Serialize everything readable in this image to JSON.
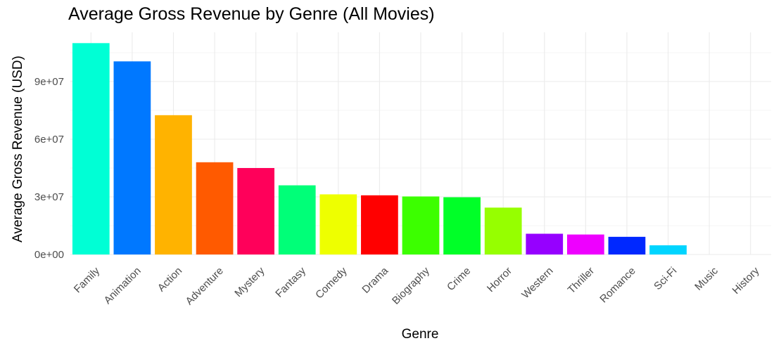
{
  "chart_data": {
    "type": "bar",
    "title": "Average Gross Revenue by Genre (All Movies)",
    "xlabel": "Genre",
    "ylabel": "Average Gross Revenue (USD)",
    "categories": [
      "Family",
      "Animation",
      "Action",
      "Adventure",
      "Mystery",
      "Fantasy",
      "Comedy",
      "Drama",
      "Biography",
      "Crime",
      "Horror",
      "Western",
      "Thriller",
      "Romance",
      "Sci-Fi",
      "Music",
      "History"
    ],
    "values": [
      110000000,
      100500000,
      72500000,
      48000000,
      45000000,
      36000000,
      31300000,
      30800000,
      30200000,
      29800000,
      24400000,
      10800000,
      10400000,
      9200000,
      4800000,
      0,
      0
    ],
    "colors": [
      "#00FFD5",
      "#0078FF",
      "#FFB300",
      "#FF5A00",
      "#FF005A",
      "#00FF78",
      "#EEFF00",
      "#FF0000",
      "#3CFF00",
      "#00FF28",
      "#96FF00",
      "#9600FF",
      "#EE00FF",
      "#0028FF",
      "#00D5FF",
      "#000000",
      "#000000"
    ],
    "yticks": [
      0,
      30000000,
      60000000,
      90000000
    ],
    "ytick_labels": [
      "0e+00",
      "3e+07",
      "6e+07",
      "9e+07"
    ],
    "ylim": [
      0,
      110000000
    ],
    "grid": true,
    "legend": "none"
  }
}
